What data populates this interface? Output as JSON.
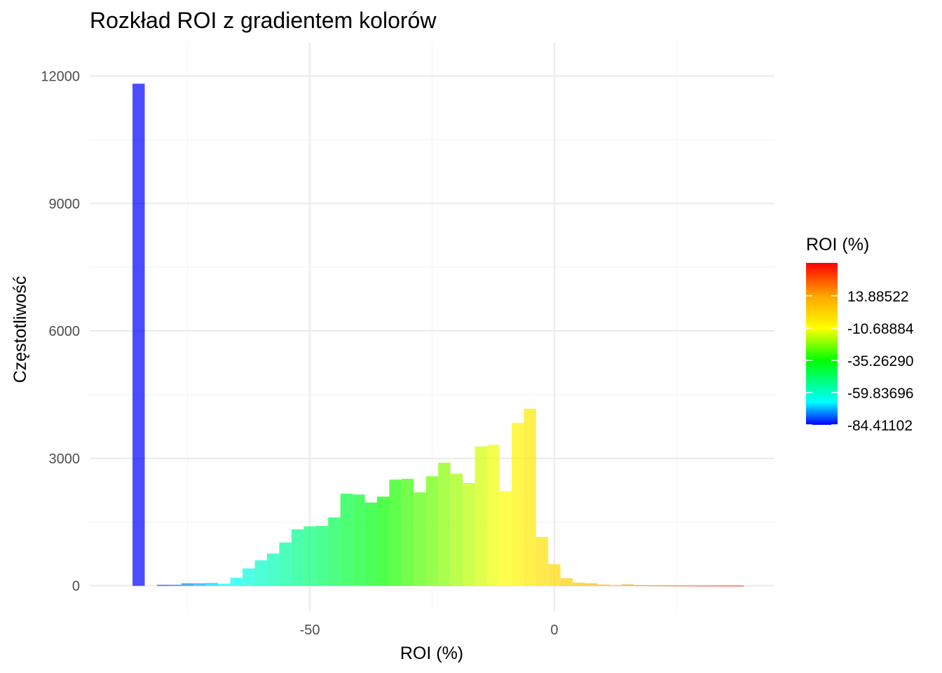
{
  "chart_data": {
    "type": "bar",
    "subtype": "histogram",
    "title": "Rozkład ROI z gradientem kolorów",
    "xlabel": "ROI (%)",
    "ylabel": "Częstotliwość",
    "xlim": [
      -95,
      45
    ],
    "ylim": [
      -600,
      12800
    ],
    "x_ticks": [
      -50,
      0
    ],
    "x_tick_labels": [
      "-50",
      "0"
    ],
    "x_minor_ticks": [
      -75,
      -25,
      25
    ],
    "y_ticks": [
      0,
      3000,
      6000,
      9000,
      12000
    ],
    "y_tick_labels": [
      "0",
      "3000",
      "6000",
      "9000",
      "12000"
    ],
    "y_minor_ticks": [
      1500,
      4500,
      7500,
      10500
    ],
    "grid": true,
    "legend_position": "right",
    "bin_width": 2.5,
    "bins": [
      {
        "x": -85,
        "count": 11820
      },
      {
        "x": -80,
        "count": 25
      },
      {
        "x": -77.5,
        "count": 25
      },
      {
        "x": -75,
        "count": 60
      },
      {
        "x": -72.5,
        "count": 60
      },
      {
        "x": -70,
        "count": 70
      },
      {
        "x": -67.5,
        "count": 50
      },
      {
        "x": -65,
        "count": 190
      },
      {
        "x": -62.5,
        "count": 410
      },
      {
        "x": -60,
        "count": 600
      },
      {
        "x": -57.5,
        "count": 760
      },
      {
        "x": -55,
        "count": 1020
      },
      {
        "x": -52.5,
        "count": 1330
      },
      {
        "x": -50,
        "count": 1400
      },
      {
        "x": -47.5,
        "count": 1410
      },
      {
        "x": -45,
        "count": 1610
      },
      {
        "x": -42.5,
        "count": 2170
      },
      {
        "x": -40,
        "count": 2150
      },
      {
        "x": -37.5,
        "count": 1960
      },
      {
        "x": -35,
        "count": 2100
      },
      {
        "x": -32.5,
        "count": 2500
      },
      {
        "x": -30,
        "count": 2520
      },
      {
        "x": -27.5,
        "count": 2200
      },
      {
        "x": -25,
        "count": 2580
      },
      {
        "x": -22.5,
        "count": 2900
      },
      {
        "x": -20,
        "count": 2640
      },
      {
        "x": -17.5,
        "count": 2420
      },
      {
        "x": -15,
        "count": 3280
      },
      {
        "x": -12.5,
        "count": 3320
      },
      {
        "x": -10,
        "count": 2230
      },
      {
        "x": -7.5,
        "count": 3840
      },
      {
        "x": -5,
        "count": 4170
      },
      {
        "x": -2.5,
        "count": 1150
      },
      {
        "x": 0,
        "count": 510
      },
      {
        "x": 2.5,
        "count": 180
      },
      {
        "x": 5,
        "count": 75
      },
      {
        "x": 7.5,
        "count": 60
      },
      {
        "x": 10,
        "count": 30
      },
      {
        "x": 12.5,
        "count": 20
      },
      {
        "x": 15,
        "count": 35
      },
      {
        "x": 17.5,
        "count": 15
      },
      {
        "x": 20,
        "count": 12
      },
      {
        "x": 22.5,
        "count": 10
      },
      {
        "x": 25,
        "count": 8
      },
      {
        "x": 27.5,
        "count": 8
      },
      {
        "x": 30,
        "count": 6
      },
      {
        "x": 32.5,
        "count": 6
      },
      {
        "x": 35,
        "count": 6
      },
      {
        "x": 37.5,
        "count": 6
      }
    ],
    "bar_opacity": 0.7,
    "color_scale": {
      "title": "ROI (%)",
      "min": -84.41102,
      "max": 39.0,
      "stops": [
        {
          "value": -84.41102,
          "color": "#0000ff"
        },
        {
          "value": -67.0,
          "color": "#00ffff"
        },
        {
          "value": -35.2629,
          "color": "#00ff00"
        },
        {
          "value": -10.68884,
          "color": "#ffff00"
        },
        {
          "value": 13.88522,
          "color": "#ffa500"
        },
        {
          "value": 39.0,
          "color": "#ff0000"
        }
      ],
      "breaks": [
        13.88522,
        -10.68884,
        -35.2629,
        -59.83696,
        -84.41102
      ],
      "break_labels": [
        "13.88522",
        "-10.68884",
        "-35.26290",
        "-59.83696",
        "-84.41102"
      ]
    },
    "colors": {
      "grid_major": "#ebebeb",
      "grid_minor": "#f5f5f5",
      "tick_text": "#4d4d4d",
      "title_text": "#000000"
    }
  }
}
